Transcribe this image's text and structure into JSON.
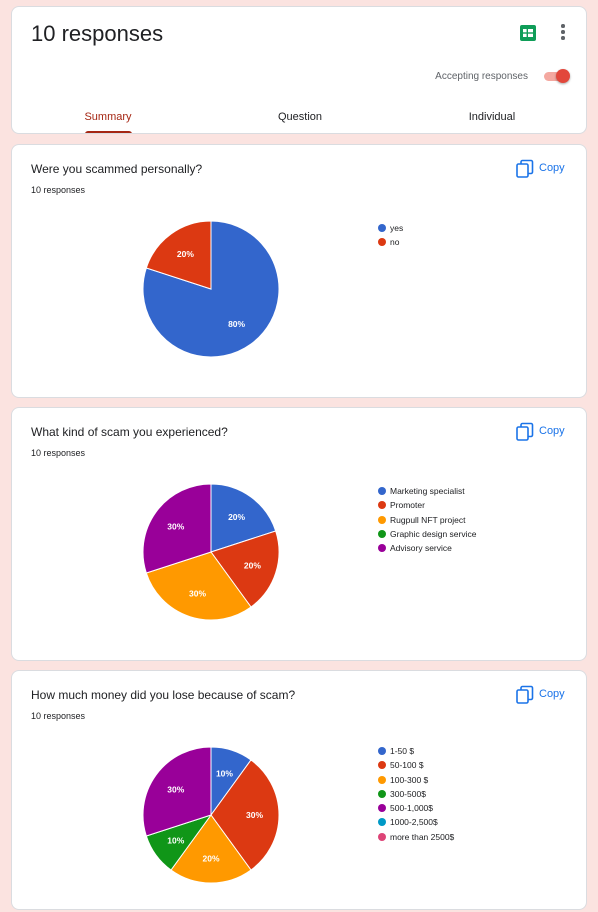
{
  "header": {
    "title": "10 responses",
    "sheets_icon": "google-sheets-icon",
    "more_icon": "more-vert-icon",
    "accepting_label": "Accepting responses",
    "accepting": true,
    "tabs": [
      {
        "label": "Summary",
        "active": true
      },
      {
        "label": "Question",
        "active": false
      },
      {
        "label": "Individual",
        "active": false
      }
    ]
  },
  "copy_label": "Copy",
  "questions": [
    {
      "title": "Were you scammed personally?",
      "count": "10 responses",
      "legend": [
        "yes",
        "no"
      ]
    },
    {
      "title": "What kind of scam you experienced?",
      "count": "10 responses",
      "legend": [
        "Marketing specialist",
        "Promoter",
        "Rugpull NFT project",
        "Graphic design service",
        "Advisory service"
      ]
    },
    {
      "title": "How much money did you lose because of scam?",
      "count": "10 responses",
      "legend": [
        "1-50 $",
        "50-100 $",
        "100-300 $",
        "300-500$",
        "500-1,000$",
        "1000-2,500$",
        "more than 2500$"
      ]
    }
  ],
  "chart_data": [
    {
      "type": "pie",
      "categories": [
        "yes",
        "no"
      ],
      "values": [
        80,
        20
      ],
      "labels": [
        "80%",
        "20%"
      ],
      "colors": [
        "#3366cc",
        "#dc3912"
      ],
      "legend_position": "right"
    },
    {
      "type": "pie",
      "categories": [
        "Marketing specialist",
        "Promoter",
        "Rugpull NFT project",
        "Graphic design service",
        "Advisory service"
      ],
      "values": [
        20,
        20,
        30,
        0,
        30
      ],
      "labels": [
        "20%",
        "20%",
        "30%",
        "",
        "30%"
      ],
      "colors": [
        "#3366cc",
        "#dc3912",
        "#ff9900",
        "#109618",
        "#990099"
      ],
      "legend_position": "right"
    },
    {
      "type": "pie",
      "categories": [
        "1-50 $",
        "50-100 $",
        "100-300 $",
        "300-500$",
        "500-1,000$",
        "1000-2,500$",
        "more than 2500$"
      ],
      "values": [
        10,
        30,
        20,
        10,
        30,
        0,
        0
      ],
      "labels": [
        "10%",
        "30%",
        "20%",
        "10%",
        "30%",
        "",
        ""
      ],
      "colors": [
        "#3366cc",
        "#dc3912",
        "#ff9900",
        "#109618",
        "#990099",
        "#0099c6",
        "#dd4477"
      ],
      "legend_position": "right"
    }
  ]
}
